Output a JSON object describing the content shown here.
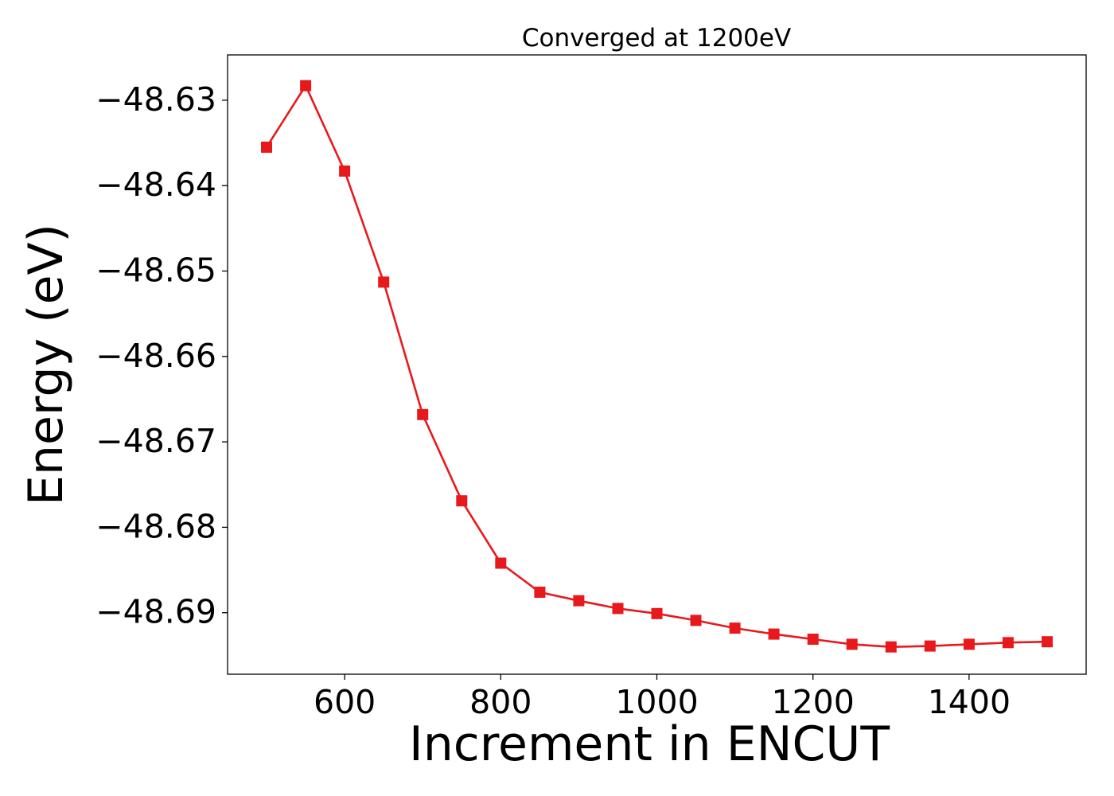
{
  "chart_data": {
    "type": "line",
    "title": "Converged at 1200eV",
    "xlabel": "Increment in ENCUT",
    "ylabel": "Energy (eV)",
    "xlim": [
      450,
      1550
    ],
    "ylim": [
      -48.6972,
      -48.6247
    ],
    "xticks": [
      600,
      800,
      1000,
      1200,
      1400
    ],
    "xtick_labels": [
      "600",
      "800",
      "1000",
      "1200",
      "1400"
    ],
    "yticks": [
      -48.63,
      -48.64,
      -48.65,
      -48.66,
      -48.67,
      -48.68,
      -48.69
    ],
    "ytick_labels": [
      "−48.63",
      "−48.64",
      "−48.65",
      "−48.66",
      "−48.67",
      "−48.68",
      "−48.69"
    ],
    "grid": false,
    "series": [
      {
        "color": "#e8191d",
        "marker": "square",
        "x": [
          500,
          550,
          600,
          650,
          700,
          750,
          800,
          850,
          900,
          950,
          1000,
          1050,
          1100,
          1150,
          1200,
          1250,
          1300,
          1350,
          1400,
          1450,
          1500
        ],
        "y": [
          -48.6355,
          -48.6283,
          -48.6383,
          -48.6513,
          -48.6668,
          -48.6769,
          -48.6842,
          -48.6876,
          -48.6886,
          -48.6895,
          -48.6901,
          -48.6909,
          -48.6918,
          -48.6925,
          -48.6931,
          -48.6937,
          -48.694,
          -48.6939,
          -48.6937,
          -48.6935,
          -48.6934
        ]
      }
    ]
  }
}
